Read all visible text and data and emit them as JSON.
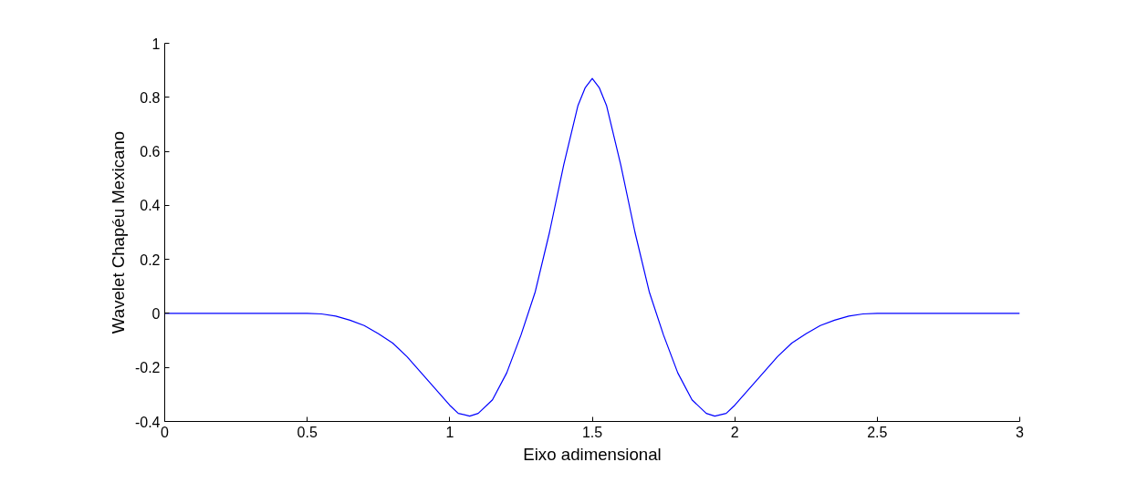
{
  "chart_data": {
    "type": "line",
    "xlabel": "Eixo adimensional",
    "ylabel": "Wavelet Chapéu Mexicano",
    "x": [
      0,
      0.25,
      0.5,
      0.55,
      0.6,
      0.65,
      0.7,
      0.75,
      0.8,
      0.85,
      0.9,
      0.95,
      1.0,
      1.03,
      1.07,
      1.1,
      1.15,
      1.2,
      1.25,
      1.3,
      1.35,
      1.4,
      1.45,
      1.475,
      1.5,
      1.525,
      1.55,
      1.6,
      1.65,
      1.7,
      1.75,
      1.8,
      1.85,
      1.9,
      1.93,
      1.97,
      2.0,
      2.05,
      2.1,
      2.15,
      2.2,
      2.25,
      2.3,
      2.35,
      2.4,
      2.45,
      2.5,
      2.75,
      3.0
    ],
    "series": [
      {
        "color": "#0000ff",
        "values": [
          0,
          0,
          0,
          -0.002,
          -0.01,
          -0.025,
          -0.045,
          -0.075,
          -0.11,
          -0.16,
          -0.22,
          -0.28,
          -0.34,
          -0.37,
          -0.38,
          -0.37,
          -0.32,
          -0.22,
          -0.08,
          0.08,
          0.3,
          0.55,
          0.77,
          0.835,
          0.87,
          0.835,
          0.77,
          0.55,
          0.3,
          0.08,
          -0.08,
          -0.22,
          -0.32,
          -0.37,
          -0.38,
          -0.37,
          -0.34,
          -0.28,
          -0.22,
          -0.16,
          -0.11,
          -0.075,
          -0.045,
          -0.025,
          -0.01,
          -0.002,
          0,
          0,
          0
        ]
      }
    ],
    "xlim": [
      0,
      3
    ],
    "ylim": [
      -0.4,
      1
    ],
    "xticks": [
      0,
      0.5,
      1,
      1.5,
      2,
      2.5,
      3
    ],
    "yticks": [
      -0.4,
      -0.2,
      0,
      0.2,
      0.4,
      0.6,
      0.8,
      1
    ],
    "grid": false,
    "marker": "none",
    "line_style": "solid"
  }
}
